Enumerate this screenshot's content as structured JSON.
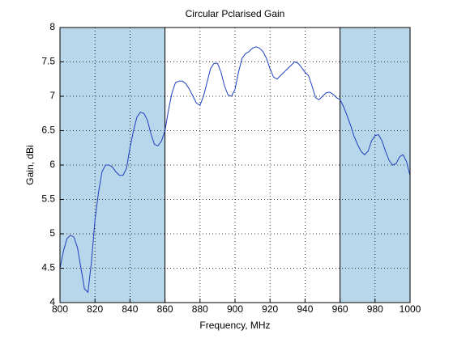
{
  "chart_data": {
    "type": "line",
    "title": "Circular Pclarised Gain",
    "x_label": "Frequency, MHz",
    "y_label": "Gain, dBi",
    "xlim": [
      800,
      1000
    ],
    "ylim": [
      4,
      8
    ],
    "xticks": [
      800,
      820,
      840,
      860,
      880,
      900,
      920,
      940,
      960,
      980,
      1000
    ],
    "yticks": [
      4,
      4.5,
      5,
      5.5,
      6,
      6.5,
      7,
      7.5,
      8
    ],
    "grid": true,
    "shaded_regions": [
      [
        800,
        860
      ],
      [
        960,
        1000
      ]
    ],
    "shade_color": "#b9d7ea",
    "x": [
      800,
      802,
      804,
      806,
      808,
      810,
      812,
      814,
      816,
      818,
      820,
      822,
      824,
      826,
      828,
      830,
      832,
      834,
      836,
      838,
      840,
      842,
      844,
      846,
      848,
      850,
      852,
      854,
      856,
      858,
      860,
      862,
      864,
      866,
      868,
      870,
      872,
      874,
      876,
      878,
      880,
      882,
      884,
      886,
      888,
      890,
      892,
      894,
      896,
      898,
      900,
      902,
      904,
      906,
      908,
      910,
      912,
      914,
      916,
      918,
      920,
      922,
      924,
      926,
      928,
      930,
      932,
      934,
      936,
      938,
      940,
      942,
      944,
      946,
      948,
      950,
      952,
      954,
      956,
      958,
      960,
      962,
      964,
      966,
      968,
      970,
      972,
      974,
      976,
      978,
      980,
      982,
      984,
      986,
      988,
      990,
      992,
      994,
      996,
      998,
      1000
    ],
    "series": [
      {
        "color": "#1f3fbf",
        "values": [
          4.5,
          4.75,
          4.93,
          4.98,
          4.95,
          4.8,
          4.5,
          4.2,
          4.15,
          4.6,
          5.2,
          5.6,
          5.9,
          6.0,
          6.0,
          5.97,
          5.9,
          5.85,
          5.85,
          5.95,
          6.25,
          6.5,
          6.7,
          6.77,
          6.75,
          6.65,
          6.45,
          6.3,
          6.28,
          6.35,
          6.5,
          6.8,
          7.05,
          7.2,
          7.22,
          7.22,
          7.18,
          7.1,
          7.0,
          6.9,
          6.87,
          7.0,
          7.2,
          7.4,
          7.48,
          7.48,
          7.35,
          7.15,
          7.02,
          7.0,
          7.1,
          7.35,
          7.55,
          7.62,
          7.65,
          7.7,
          7.72,
          7.7,
          7.65,
          7.55,
          7.4,
          7.28,
          7.25,
          7.3,
          7.35,
          7.4,
          7.45,
          7.5,
          7.48,
          7.42,
          7.35,
          7.3,
          7.15,
          6.98,
          6.95,
          7.0,
          7.05,
          7.06,
          7.03,
          6.98,
          6.95,
          6.85,
          6.72,
          6.58,
          6.42,
          6.3,
          6.2,
          6.15,
          6.2,
          6.35,
          6.43,
          6.44,
          6.35,
          6.2,
          6.07,
          6.0,
          6.02,
          6.12,
          6.15,
          6.05,
          5.85
        ]
      }
    ]
  }
}
